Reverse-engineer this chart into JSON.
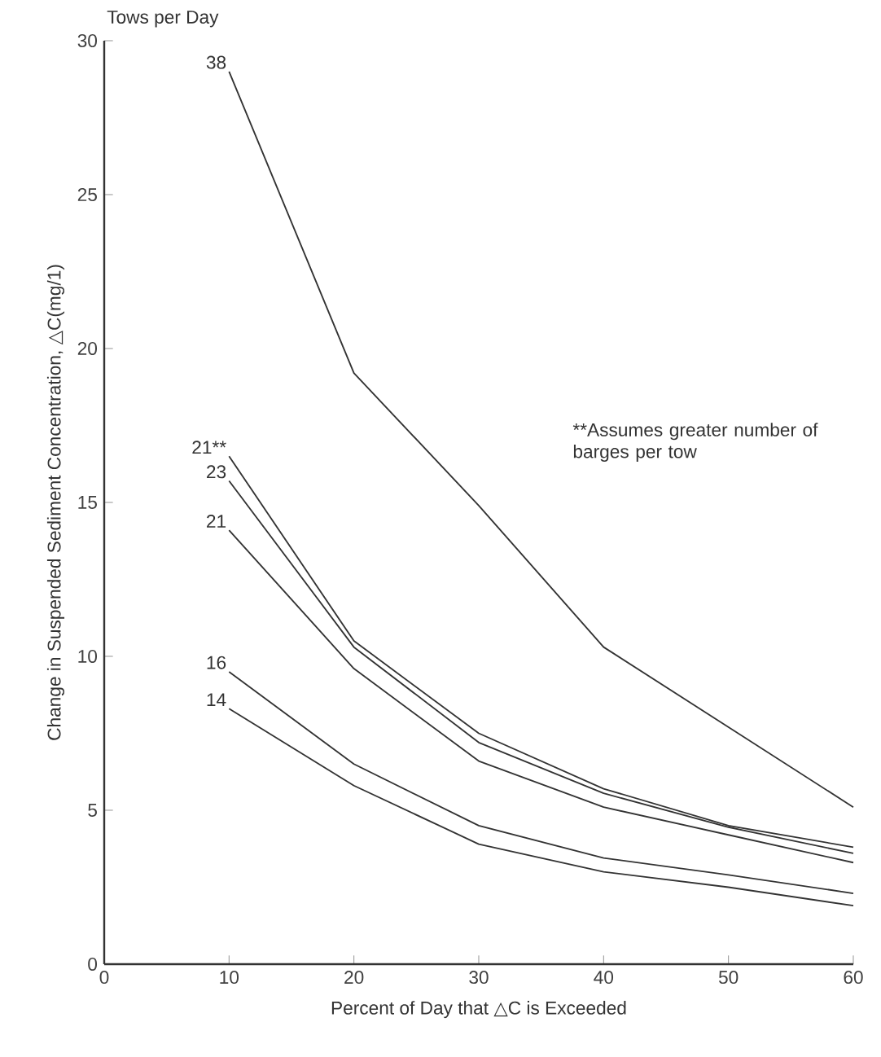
{
  "chart_data": {
    "type": "line",
    "xlabel": "Percent of Day that △C is Exceeded",
    "ylabel": "Change in Suspended Sediment Concentration, △C(mg/1)",
    "legend_title": "Tows per Day",
    "annotations": [
      "**Assumes greater number of barges per tow"
    ],
    "x": [
      10,
      20,
      30,
      40,
      50,
      60
    ],
    "series": [
      {
        "name": "38",
        "color": "#333333",
        "values": [
          29.0,
          19.2,
          14.9,
          10.3,
          7.7,
          5.1
        ]
      },
      {
        "name": "21**",
        "color": "#333333",
        "values": [
          16.5,
          10.5,
          7.5,
          5.7,
          4.5,
          3.8
        ]
      },
      {
        "name": "23",
        "color": "#333333",
        "values": [
          15.7,
          10.3,
          7.2,
          5.55,
          4.45,
          3.6
        ]
      },
      {
        "name": "21",
        "color": "#333333",
        "values": [
          14.1,
          9.6,
          6.6,
          5.1,
          4.2,
          3.3
        ]
      },
      {
        "name": "16",
        "color": "#333333",
        "values": [
          9.5,
          6.5,
          4.5,
          3.45,
          2.9,
          2.3
        ]
      },
      {
        "name": "14",
        "color": "#333333",
        "values": [
          8.3,
          5.8,
          3.9,
          3.0,
          2.5,
          1.9
        ]
      }
    ],
    "xlim": [
      0,
      60
    ],
    "xticks": [
      0,
      10,
      20,
      30,
      40,
      50,
      60
    ],
    "ylim": [
      0,
      30
    ],
    "yticks": [
      0,
      5,
      10,
      15,
      20,
      25,
      30
    ],
    "grid": false,
    "legend": false,
    "marker": "none",
    "line_style": "solid"
  }
}
